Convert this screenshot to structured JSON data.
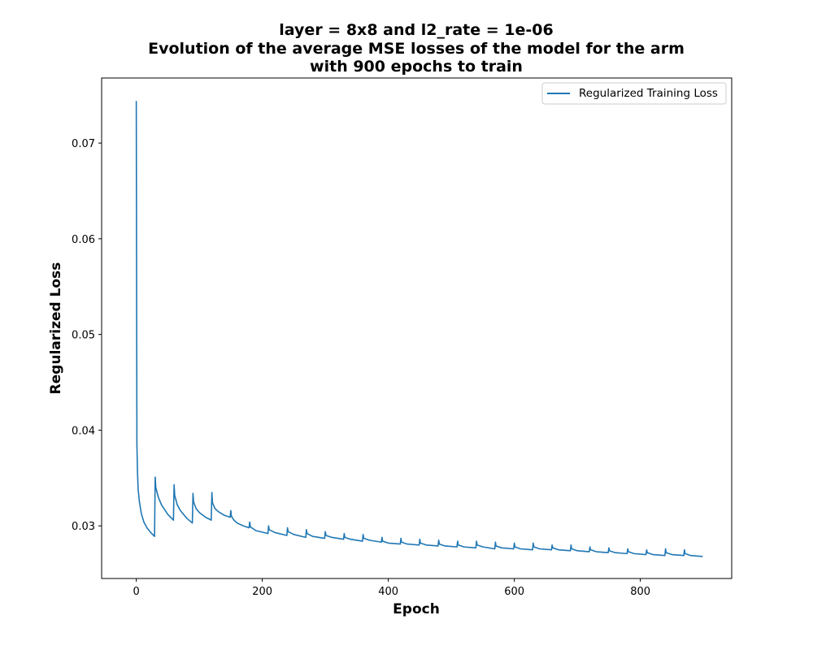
{
  "chart_data": {
    "type": "line",
    "title_lines": [
      "layer = 8x8 and l2_rate = 1e-06",
      "Evolution of the average MSE losses of the model for the arm",
      "with 900 epochs to train"
    ],
    "xlabel": "Epoch",
    "ylabel": "Regularized Loss",
    "xlim": [
      -55,
      945
    ],
    "ylim": [
      0.0245,
      0.0768
    ],
    "xticks": [
      0,
      200,
      400,
      600,
      800
    ],
    "xtick_labels": [
      "0",
      "200",
      "400",
      "600",
      "800"
    ],
    "yticks": [
      0.03,
      0.04,
      0.05,
      0.06,
      0.07
    ],
    "ytick_labels": [
      "0.03",
      "0.04",
      "0.05",
      "0.06",
      "0.07"
    ],
    "grid": false,
    "legend_position": "top-right",
    "series": [
      {
        "name": "Regularized Training Loss",
        "color": "#1f77b4",
        "x": [
          0,
          1,
          2,
          3,
          5,
          8,
          12,
          17,
          23,
          29,
          30,
          31,
          35,
          40,
          50,
          59,
          60,
          61,
          65,
          70,
          80,
          89,
          90,
          91,
          95,
          100,
          110,
          119,
          120,
          121,
          125,
          130,
          140,
          149,
          150,
          151,
          155,
          160,
          170,
          179,
          180,
          181,
          190,
          209,
          210,
          211,
          220,
          239,
          240,
          241,
          250,
          269,
          270,
          271,
          280,
          299,
          300,
          301,
          310,
          329,
          330,
          331,
          340,
          359,
          360,
          361,
          370,
          389,
          390,
          391,
          400,
          419,
          420,
          421,
          430,
          449,
          450,
          451,
          460,
          479,
          480,
          481,
          490,
          509,
          510,
          511,
          520,
          539,
          540,
          541,
          550,
          569,
          570,
          571,
          580,
          599,
          600,
          601,
          610,
          629,
          630,
          631,
          640,
          659,
          660,
          661,
          670,
          689,
          690,
          691,
          700,
          719,
          720,
          721,
          730,
          749,
          750,
          751,
          760,
          779,
          780,
          781,
          790,
          809,
          810,
          811,
          820,
          839,
          840,
          841,
          850,
          869,
          870,
          871,
          880,
          899
        ],
        "values": [
          0.0744,
          0.0385,
          0.0355,
          0.0338,
          0.0325,
          0.0313,
          0.0304,
          0.0298,
          0.0293,
          0.0289,
          0.0351,
          0.034,
          0.033,
          0.0322,
          0.0312,
          0.0306,
          0.0343,
          0.0332,
          0.0322,
          0.0316,
          0.0308,
          0.0303,
          0.0334,
          0.0325,
          0.0318,
          0.0314,
          0.0309,
          0.0306,
          0.0335,
          0.0324,
          0.0318,
          0.0315,
          0.0311,
          0.0309,
          0.0316,
          0.031,
          0.0306,
          0.0303,
          0.03,
          0.0298,
          0.0304,
          0.0299,
          0.0295,
          0.0292,
          0.03,
          0.0296,
          0.0293,
          0.029,
          0.0298,
          0.0294,
          0.0291,
          0.0288,
          0.0296,
          0.0292,
          0.0289,
          0.0287,
          0.0294,
          0.029,
          0.0288,
          0.0286,
          0.0292,
          0.0288,
          0.0286,
          0.0284,
          0.0291,
          0.0287,
          0.0285,
          0.0283,
          0.0288,
          0.0284,
          0.0282,
          0.0281,
          0.0287,
          0.0283,
          0.0281,
          0.028,
          0.0286,
          0.0282,
          0.028,
          0.0279,
          0.0285,
          0.0281,
          0.0279,
          0.0278,
          0.0284,
          0.028,
          0.0278,
          0.0277,
          0.0284,
          0.028,
          0.0278,
          0.0276,
          0.0283,
          0.0279,
          0.0277,
          0.0276,
          0.0282,
          0.0278,
          0.0276,
          0.0275,
          0.0282,
          0.0278,
          0.0276,
          0.0275,
          0.028,
          0.0277,
          0.0275,
          0.0274,
          0.028,
          0.0276,
          0.0274,
          0.0273,
          0.0278,
          0.0275,
          0.0273,
          0.0272,
          0.0277,
          0.0274,
          0.0272,
          0.0271,
          0.0276,
          0.0273,
          0.0271,
          0.027,
          0.0275,
          0.0272,
          0.027,
          0.0269,
          0.0276,
          0.0272,
          0.027,
          0.0269,
          0.0275,
          0.0271,
          0.0269,
          0.0268
        ]
      }
    ]
  }
}
